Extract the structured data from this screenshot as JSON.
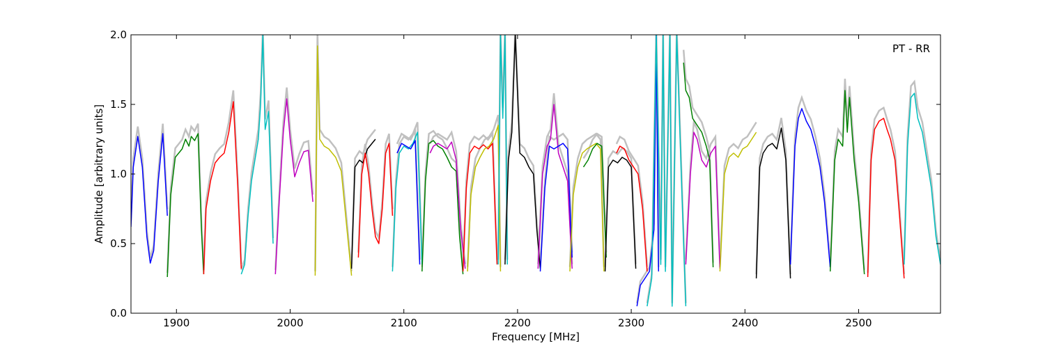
{
  "chart_data": {
    "type": "line",
    "annotation": "PT - RR",
    "xlabel": "Frequency [MHz]",
    "ylabel": "Amplitude [arbitrary units]",
    "xlim": [
      1860,
      2572
    ],
    "ylim": [
      0.0,
      2.0
    ],
    "x_ticks": [
      1900,
      2000,
      2100,
      2200,
      2300,
      2400,
      2500
    ],
    "x_tick_labels": [
      "1900",
      "2000",
      "2100",
      "2200",
      "2300",
      "2400",
      "2500"
    ],
    "y_ticks": [
      0.0,
      0.5,
      1.0,
      1.5,
      2.0
    ],
    "y_tick_labels": [
      "0.0",
      "0.5",
      "1.0",
      "1.5",
      "2.0"
    ],
    "grid": false,
    "background_color": "#c0c0c0",
    "colors": {
      "b": "#0000ff",
      "g": "#008000",
      "r": "#ff0000",
      "c": "#00bfbf",
      "m": "#bf00bf",
      "y": "#bfbf00",
      "k": "#000000"
    },
    "series": [
      {
        "color": "b",
        "x": [
          1860,
          1862,
          1866,
          1870,
          1874,
          1877,
          1880,
          1884,
          1888,
          1892
        ],
        "y": [
          0.62,
          1.05,
          1.27,
          1.05,
          0.55,
          0.36,
          0.45,
          0.95,
          1.29,
          0.7
        ]
      },
      {
        "color": "g",
        "x": [
          1892,
          1895,
          1899,
          1905,
          1908,
          1911,
          1913,
          1916,
          1919,
          1922,
          1924
        ],
        "y": [
          0.26,
          0.85,
          1.12,
          1.18,
          1.25,
          1.2,
          1.27,
          1.24,
          1.29,
          0.6,
          0.28
        ]
      },
      {
        "color": "r",
        "x": [
          1924,
          1926,
          1930,
          1934,
          1938,
          1942,
          1946,
          1950,
          1954,
          1957
        ],
        "y": [
          0.28,
          0.75,
          0.95,
          1.08,
          1.12,
          1.15,
          1.3,
          1.52,
          0.9,
          0.32
        ]
      },
      {
        "color": "c",
        "x": [
          1957,
          1960,
          1963,
          1966,
          1969,
          1972,
          1974,
          1976,
          1978,
          1981,
          1985
        ],
        "y": [
          0.28,
          0.35,
          0.7,
          0.95,
          1.1,
          1.25,
          1.5,
          2.0,
          1.32,
          1.45,
          0.5
        ]
      },
      {
        "color": "m",
        "x": [
          1987,
          1990,
          1994,
          1997,
          2000,
          2004,
          2008,
          2012,
          2016,
          2020
        ],
        "y": [
          0.28,
          0.75,
          1.3,
          1.54,
          1.25,
          0.98,
          1.08,
          1.16,
          1.17,
          0.8
        ]
      },
      {
        "color": "y",
        "x": [
          2022,
          2024,
          2026,
          2030,
          2034,
          2040,
          2045,
          2050,
          2054
        ],
        "y": [
          0.27,
          1.92,
          1.25,
          1.2,
          1.18,
          1.12,
          1.02,
          0.6,
          0.27
        ]
      },
      {
        "color": "k",
        "x": [
          2054,
          2057,
          2061,
          2064,
          2068,
          2072,
          2075
        ],
        "y": [
          0.32,
          1.05,
          1.1,
          1.08,
          1.18,
          1.22,
          1.25
        ]
      },
      {
        "color": "r",
        "x": [
          2060,
          2063,
          2066,
          2069,
          2072,
          2075,
          2078,
          2081,
          2084,
          2087,
          2090
        ],
        "y": [
          0.4,
          1.0,
          1.15,
          1.0,
          0.75,
          0.55,
          0.5,
          0.75,
          1.15,
          1.22,
          0.7
        ]
      },
      {
        "color": "c",
        "x": [
          2090,
          2093,
          2096,
          2100,
          2104,
          2108,
          2112,
          2116
        ],
        "y": [
          0.3,
          0.9,
          1.15,
          1.2,
          1.18,
          1.22,
          1.3,
          0.35
        ]
      },
      {
        "color": "b",
        "x": [
          2094,
          2098,
          2102,
          2106,
          2110,
          2114
        ],
        "y": [
          1.15,
          1.22,
          1.2,
          1.18,
          1.24,
          0.35
        ]
      },
      {
        "color": "g",
        "x": [
          2116,
          2119,
          2122,
          2126,
          2130,
          2134,
          2138,
          2142,
          2146,
          2149,
          2152
        ],
        "y": [
          0.3,
          0.95,
          1.22,
          1.24,
          1.2,
          1.18,
          1.12,
          1.05,
          1.02,
          0.55,
          0.28
        ]
      },
      {
        "color": "m",
        "x": [
          2123,
          2126,
          2130,
          2134,
          2138,
          2142,
          2146,
          2150,
          2154
        ],
        "y": [
          1.15,
          1.2,
          1.22,
          1.2,
          1.18,
          1.23,
          1.1,
          0.6,
          0.32
        ]
      },
      {
        "color": "r",
        "x": [
          2152,
          2155,
          2158,
          2162,
          2166,
          2170,
          2174,
          2178,
          2182
        ],
        "y": [
          0.3,
          0.9,
          1.15,
          1.2,
          1.18,
          1.21,
          1.18,
          1.22,
          0.35
        ]
      },
      {
        "color": "y",
        "x": [
          2156,
          2159,
          2163,
          2167,
          2171,
          2175,
          2179,
          2183,
          2185
        ],
        "y": [
          0.3,
          0.85,
          1.05,
          1.12,
          1.18,
          1.2,
          1.25,
          1.35,
          0.3
        ]
      },
      {
        "color": "c",
        "x": [
          2183,
          2185,
          2187,
          2189,
          2191
        ],
        "y": [
          0.35,
          2.0,
          1.4,
          2.0,
          0.35
        ]
      },
      {
        "color": "k",
        "x": [
          2189,
          2192,
          2195,
          2198,
          2202,
          2206,
          2210,
          2214,
          2217,
          2220
        ],
        "y": [
          0.35,
          1.1,
          1.3,
          2.0,
          1.15,
          1.12,
          1.05,
          1.0,
          0.6,
          0.32
        ]
      },
      {
        "color": "m",
        "x": [
          2218,
          2222,
          2226,
          2229,
          2232,
          2236,
          2240,
          2244,
          2248
        ],
        "y": [
          0.32,
          1.0,
          1.2,
          1.25,
          1.5,
          1.15,
          1.05,
          0.95,
          0.32
        ]
      },
      {
        "color": "b",
        "x": [
          2220,
          2224,
          2228,
          2232,
          2236,
          2240,
          2244,
          2248
        ],
        "y": [
          0.3,
          0.9,
          1.2,
          1.18,
          1.2,
          1.22,
          1.18,
          0.4
        ]
      },
      {
        "color": "y",
        "x": [
          2246,
          2249,
          2253,
          2257,
          2261,
          2265,
          2269,
          2273,
          2276
        ],
        "y": [
          0.3,
          0.85,
          1.05,
          1.15,
          1.18,
          1.2,
          1.22,
          1.18,
          0.3
        ]
      },
      {
        "color": "g",
        "x": [
          2258,
          2262,
          2266,
          2270,
          2274,
          2278
        ],
        "y": [
          1.05,
          1.1,
          1.18,
          1.22,
          1.2,
          0.4
        ]
      },
      {
        "color": "k",
        "x": [
          2277,
          2280,
          2284,
          2288,
          2292,
          2296,
          2300,
          2304
        ],
        "y": [
          0.3,
          1.05,
          1.1,
          1.08,
          1.12,
          1.1,
          1.05,
          0.32
        ]
      },
      {
        "color": "r",
        "x": [
          2287,
          2290,
          2294,
          2298,
          2302,
          2306,
          2310,
          2314
        ],
        "y": [
          1.15,
          1.2,
          1.18,
          1.1,
          1.05,
          1.0,
          0.75,
          0.3
        ]
      },
      {
        "color": "b",
        "x": [
          2305,
          2308,
          2312,
          2316,
          2320,
          2322,
          2324
        ],
        "y": [
          0.05,
          0.2,
          0.25,
          0.3,
          0.6,
          2.0,
          0.3
        ]
      },
      {
        "color": "c",
        "x": [
          2314,
          2318,
          2322,
          2326,
          2328,
          2330,
          2334,
          2336,
          2340,
          2344,
          2348
        ],
        "y": [
          0.05,
          0.25,
          2.0,
          0.35,
          2.0,
          0.3,
          2.0,
          0.05,
          2.0,
          1.0,
          0.05
        ]
      },
      {
        "color": "m",
        "x": [
          2348,
          2352,
          2355,
          2358,
          2362,
          2366,
          2370,
          2374,
          2378
        ],
        "y": [
          0.35,
          1.0,
          1.3,
          1.25,
          1.1,
          1.05,
          1.15,
          1.2,
          0.32
        ]
      },
      {
        "color": "g",
        "x": [
          2346,
          2348,
          2351,
          2354,
          2358,
          2362,
          2366,
          2369,
          2372
        ],
        "y": [
          1.8,
          1.6,
          1.55,
          1.4,
          1.35,
          1.3,
          1.2,
          1.1,
          0.33
        ]
      },
      {
        "color": "y",
        "x": [
          2378,
          2382,
          2386,
          2390,
          2394,
          2398,
          2402,
          2406,
          2410
        ],
        "y": [
          0.3,
          1.0,
          1.12,
          1.15,
          1.12,
          1.18,
          1.2,
          1.25,
          1.3
        ]
      },
      {
        "color": "k",
        "x": [
          2410,
          2413,
          2416,
          2420,
          2424,
          2428,
          2432,
          2436,
          2440
        ],
        "y": [
          0.25,
          1.05,
          1.15,
          1.2,
          1.22,
          1.18,
          1.33,
          1.1,
          0.25
        ]
      },
      {
        "color": "b",
        "x": [
          2440,
          2444,
          2447,
          2450,
          2454,
          2458,
          2462,
          2466,
          2470,
          2475
        ],
        "y": [
          0.35,
          1.2,
          1.4,
          1.47,
          1.38,
          1.32,
          1.2,
          1.05,
          0.8,
          0.33
        ]
      },
      {
        "color": "g",
        "x": [
          2475,
          2479,
          2482,
          2486,
          2488,
          2490,
          2492,
          2496,
          2500,
          2505
        ],
        "y": [
          0.3,
          1.1,
          1.25,
          1.2,
          1.6,
          1.3,
          1.55,
          1.1,
          0.8,
          0.28
        ]
      },
      {
        "color": "r",
        "x": [
          2508,
          2511,
          2514,
          2518,
          2522,
          2525,
          2528,
          2532,
          2536,
          2540
        ],
        "y": [
          0.26,
          1.1,
          1.32,
          1.38,
          1.4,
          1.32,
          1.25,
          1.1,
          0.7,
          0.25
        ]
      },
      {
        "color": "c",
        "x": [
          2540,
          2543,
          2546,
          2549,
          2552,
          2556,
          2560,
          2564,
          2568,
          2572
        ],
        "y": [
          0.35,
          1.2,
          1.55,
          1.58,
          1.4,
          1.3,
          1.1,
          0.9,
          0.55,
          0.35
        ]
      }
    ]
  }
}
